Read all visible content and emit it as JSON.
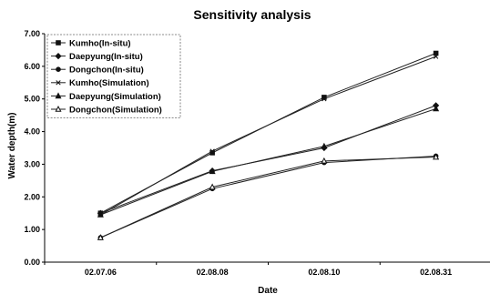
{
  "chart_data": {
    "type": "line",
    "title": "Sensitivity analysis",
    "xlabel": "Date",
    "ylabel": "Water depth(m)",
    "categories": [
      "02.07.06",
      "02.08.08",
      "02.08.10",
      "02.08.31"
    ],
    "ylim": [
      0,
      7
    ],
    "yticks": [
      "0.00",
      "1.00",
      "2.00",
      "3.00",
      "4.00",
      "5.00",
      "6.00",
      "7.00"
    ],
    "grid": false,
    "legend_position": "top-left",
    "series": [
      {
        "name": "Kumho(In-situ)",
        "values": [
          1.5,
          3.35,
          5.05,
          6.4
        ],
        "marker": "square"
      },
      {
        "name": "Daepyung(In-situ)",
        "values": [
          1.5,
          2.8,
          3.5,
          4.8
        ],
        "marker": "diamond"
      },
      {
        "name": "Dongchon(In-situ)",
        "values": [
          0.75,
          2.25,
          3.05,
          3.25
        ],
        "marker": "circle"
      },
      {
        "name": "Kumho(Simulation)",
        "values": [
          1.45,
          3.4,
          5.0,
          6.3
        ],
        "marker": "x"
      },
      {
        "name": "Daepyung(Simulation)",
        "values": [
          1.45,
          2.78,
          3.55,
          4.7
        ],
        "marker": "triangle"
      },
      {
        "name": "Dongchon(Simulation)",
        "values": [
          0.75,
          2.3,
          3.1,
          3.22
        ],
        "marker": "triangle-open"
      }
    ]
  }
}
